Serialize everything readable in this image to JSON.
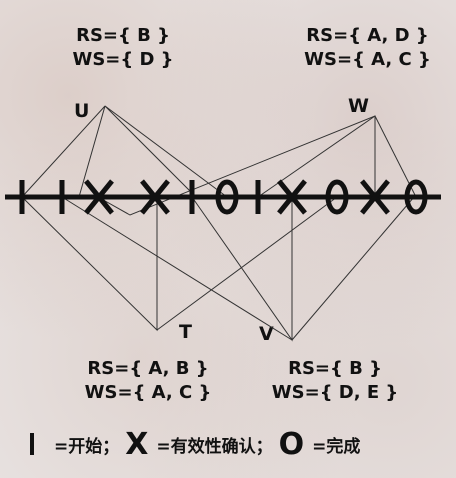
{
  "transactions": {
    "U": {
      "label": "U",
      "rs": "RS={ B }",
      "ws": "WS={ D }"
    },
    "W": {
      "label": "W",
      "rs": "RS={ A, D }",
      "ws": "WS={ A, C }"
    },
    "T": {
      "label": "T",
      "rs": "RS={ A, B }",
      "ws": "WS={ A, C }"
    },
    "V": {
      "label": "V",
      "rs": "RS={ B }",
      "ws": "WS={ D, E }"
    }
  },
  "timeline": [
    "start",
    "start",
    "validate",
    "validate",
    "start",
    "complete",
    "start",
    "validate",
    "complete",
    "validate",
    "complete"
  ],
  "legend": {
    "start_symbol": "|",
    "start_text": "=开始；",
    "validate_symbol": "X",
    "validate_text": "=有效性确认；",
    "complete_symbol": "O",
    "complete_text": "=完成"
  },
  "colors": {
    "ink": "#111111",
    "line": "#333333"
  }
}
